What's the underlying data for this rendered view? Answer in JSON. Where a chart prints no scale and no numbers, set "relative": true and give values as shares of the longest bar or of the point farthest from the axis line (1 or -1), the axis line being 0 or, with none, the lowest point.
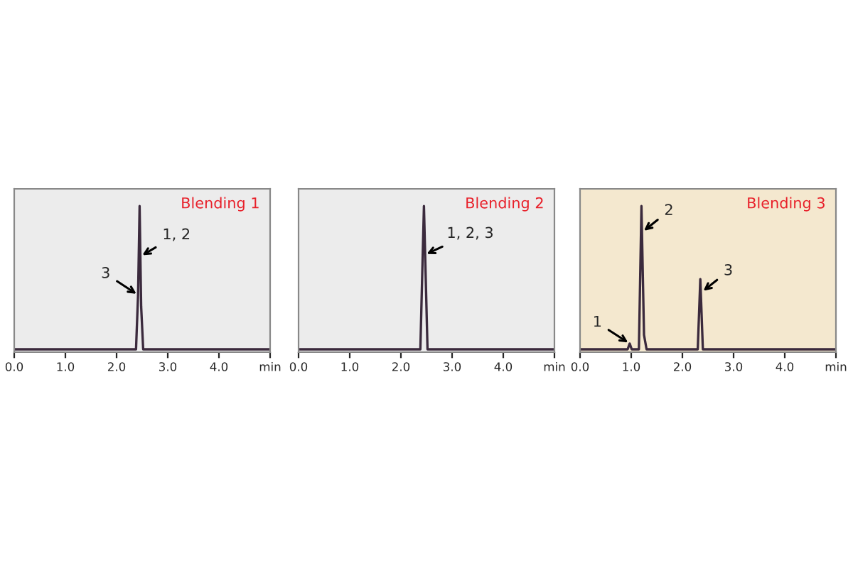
{
  "chart_data": [
    {
      "type": "line",
      "title": "Blending 1",
      "relative": true,
      "tick_labels": "x",
      "xlim": [
        0,
        5
      ],
      "xticks": [
        {
          "value": 0,
          "label": "0.0"
        },
        {
          "value": 1,
          "label": "1.0"
        },
        {
          "value": 2,
          "label": "2.0"
        },
        {
          "value": 3,
          "label": "3.0"
        },
        {
          "value": 4,
          "label": "4.0"
        },
        {
          "value": 5,
          "label": "min"
        }
      ],
      "series": [
        {
          "color": "#3b2a3d",
          "x": [
            0,
            2.38,
            2.42,
            2.45,
            2.48,
            2.52,
            5
          ],
          "values": [
            0,
            0,
            0.38,
            1,
            0.3,
            0,
            0
          ]
        }
      ],
      "annotations": [
        {
          "text": "1, 2",
          "x": 2.47,
          "y": 0.65
        },
        {
          "text": "3",
          "x": 2.42,
          "y": 0.38
        }
      ]
    },
    {
      "type": "line",
      "title": "Blending 2",
      "relative": true,
      "tick_labels": "x",
      "xlim": [
        0,
        5
      ],
      "xticks": [
        {
          "value": 0,
          "label": "0.0"
        },
        {
          "value": 1,
          "label": "1.0"
        },
        {
          "value": 2,
          "label": "2.0"
        },
        {
          "value": 3,
          "label": "3.0"
        },
        {
          "value": 4,
          "label": "4.0"
        },
        {
          "value": 5,
          "label": "min"
        }
      ],
      "series": [
        {
          "color": "#3b2a3d",
          "x": [
            0,
            2.38,
            2.45,
            2.52,
            5
          ],
          "values": [
            0,
            0,
            1,
            0,
            0
          ]
        }
      ],
      "annotations": [
        {
          "text": "1, 2, 3",
          "x": 2.47,
          "y": 0.66
        }
      ]
    },
    {
      "type": "line",
      "title": "Blending 3",
      "relative": true,
      "tick_labels": "x",
      "xlim": [
        0,
        5
      ],
      "xticks": [
        {
          "value": 0,
          "label": "0.0"
        },
        {
          "value": 1,
          "label": "1.0"
        },
        {
          "value": 2,
          "label": "2.0"
        },
        {
          "value": 3,
          "label": "3.0"
        },
        {
          "value": 4,
          "label": "4.0"
        },
        {
          "value": 5,
          "label": "min"
        }
      ],
      "series": [
        {
          "color": "#3b2a3d",
          "x": [
            0,
            0.93,
            0.97,
            1.01,
            1.15,
            1.2,
            1.25,
            1.3,
            2.3,
            2.35,
            2.4,
            5
          ],
          "values": [
            0,
            0,
            0.04,
            0,
            0,
            1,
            0.1,
            0,
            0,
            0.49,
            0,
            0
          ]
        }
      ],
      "annotations": [
        {
          "text": "1",
          "x": 0.97,
          "y": 0.04
        },
        {
          "text": "2",
          "x": 1.22,
          "y": 0.82
        },
        {
          "text": "3",
          "x": 2.38,
          "y": 0.4
        }
      ]
    }
  ]
}
